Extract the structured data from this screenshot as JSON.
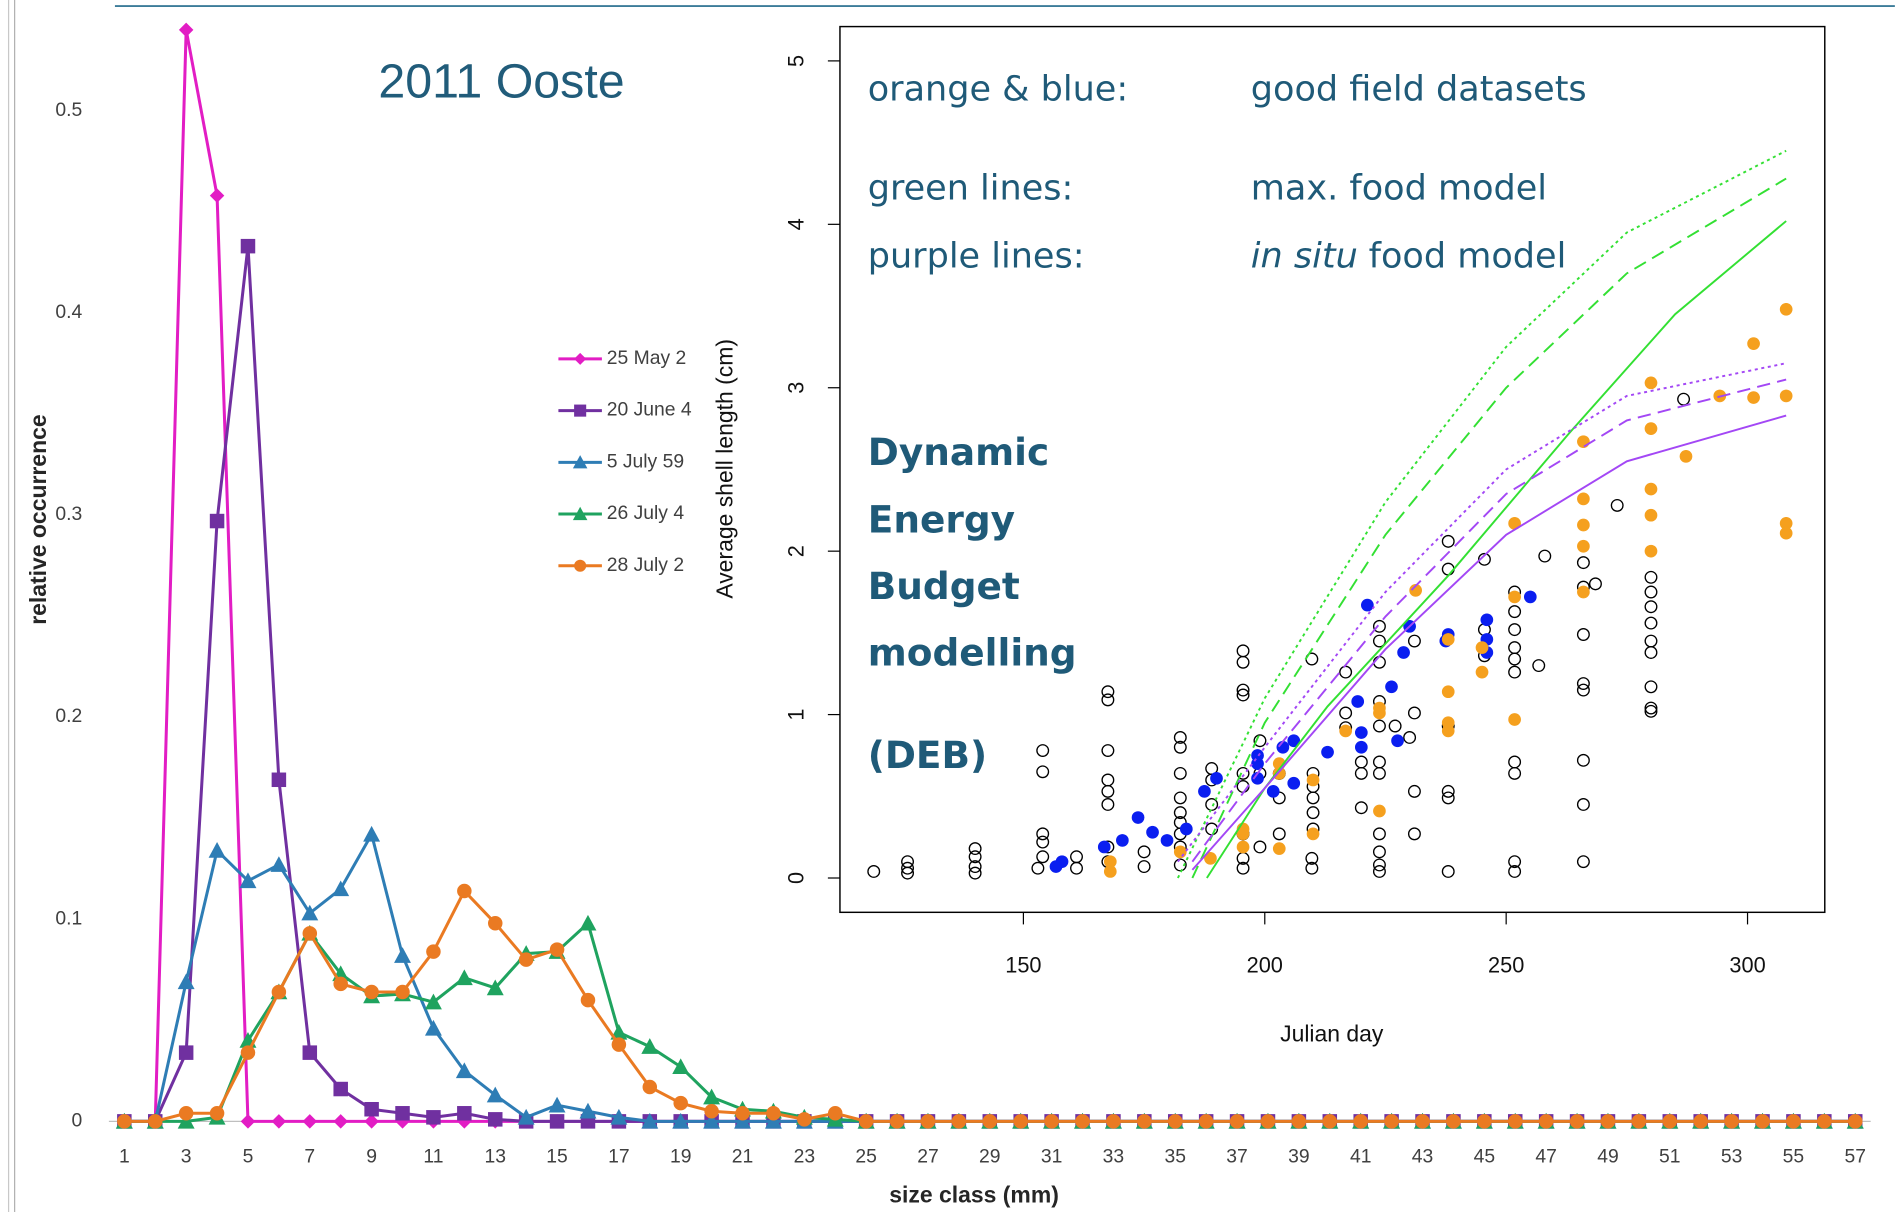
{
  "chart_data": [
    {
      "type": "line",
      "title": "2011 Ooste",
      "x_label": "size class (mm)",
      "y_label": "relative occurrence",
      "x": [
        1,
        2,
        3,
        4,
        5,
        6,
        7,
        8,
        9,
        10,
        11,
        12,
        13,
        14,
        15,
        16,
        17,
        18,
        19,
        20,
        21,
        22,
        23,
        24,
        25,
        26,
        27,
        28,
        29,
        30,
        31,
        32,
        33,
        34,
        35,
        36,
        37,
        38,
        39,
        40,
        41,
        42,
        43,
        44,
        45,
        46,
        47,
        48,
        49,
        50,
        51,
        52,
        53,
        54,
        55,
        56,
        57
      ],
      "xlim": [
        0.5,
        57.5
      ],
      "xticks": [
        1,
        3,
        5,
        7,
        9,
        11,
        13,
        15,
        17,
        19,
        21,
        23,
        25,
        27,
        29,
        31,
        33,
        35,
        37,
        39,
        41,
        43,
        45,
        47,
        49,
        51,
        53,
        55,
        57
      ],
      "ylim": [
        0,
        0.55
      ],
      "yticks": [
        0,
        0.1,
        0.2,
        0.3,
        0.4,
        0.5
      ],
      "legend": "right",
      "series": [
        {
          "name": "25 May 2",
          "color": "#e21dc4",
          "marker": "diamond",
          "values": [
            0,
            0,
            0.54,
            0.458,
            0,
            0,
            0,
            0,
            0,
            0,
            0,
            0,
            0,
            0,
            0,
            0,
            0,
            0,
            0,
            0,
            0,
            0,
            0,
            0,
            0,
            0,
            0,
            0,
            0,
            0,
            0,
            0,
            0,
            0,
            0,
            0,
            0,
            0,
            0,
            0,
            0,
            0,
            0,
            0,
            0,
            0,
            0,
            0,
            0,
            0,
            0,
            0,
            0,
            0,
            0,
            0,
            0
          ]
        },
        {
          "name": "20 June 4",
          "color": "#7030a0",
          "marker": "square",
          "values": [
            0,
            0,
            0.034,
            0.297,
            0.433,
            0.169,
            0.034,
            0.016,
            0.006,
            0.004,
            0.002,
            0.004,
            0.001,
            0,
            0,
            0,
            0,
            0,
            0,
            0,
            0,
            0,
            0,
            0,
            0,
            0,
            0,
            0,
            0,
            0,
            0,
            0,
            0,
            0,
            0,
            0,
            0,
            0,
            0,
            0,
            0,
            0,
            0,
            0,
            0,
            0,
            0,
            0,
            0,
            0,
            0,
            0,
            0,
            0,
            0,
            0,
            0
          ]
        },
        {
          "name": "5 July 59",
          "color": "#2e7db5",
          "marker": "triangle",
          "values": [
            0,
            0,
            0.069,
            0.134,
            0.119,
            0.127,
            0.103,
            0.115,
            0.142,
            0.082,
            0.046,
            0.025,
            0.013,
            0.002,
            0.008,
            0.005,
            0.002,
            0,
            0,
            0,
            0,
            0,
            0,
            0,
            0,
            0,
            0,
            0,
            0,
            0,
            0,
            0,
            0,
            0,
            0,
            0,
            0,
            0,
            0,
            0,
            0,
            0,
            0,
            0,
            0,
            0,
            0,
            0,
            0,
            0,
            0,
            0,
            0,
            0,
            0,
            0,
            0
          ]
        },
        {
          "name": "26 July 4",
          "color": "#1fa35f",
          "marker": "triangle",
          "values": [
            0,
            0,
            0,
            0.002,
            0.04,
            0.064,
            0.093,
            0.073,
            0.062,
            0.063,
            0.059,
            0.071,
            0.066,
            0.083,
            0.084,
            0.098,
            0.044,
            0.037,
            0.027,
            0.012,
            0.006,
            0.005,
            0.002,
            0.001,
            0,
            0,
            0,
            0,
            0,
            0,
            0,
            0,
            0,
            0,
            0,
            0,
            0,
            0,
            0,
            0,
            0,
            0,
            0,
            0,
            0,
            0,
            0,
            0,
            0,
            0,
            0,
            0,
            0,
            0,
            0,
            0,
            0
          ]
        },
        {
          "name": "28 July 2",
          "color": "#ea7a22",
          "marker": "circle",
          "values": [
            0,
            0,
            0.004,
            0.004,
            0.034,
            0.064,
            0.093,
            0.068,
            0.064,
            0.064,
            0.084,
            0.114,
            0.098,
            0.08,
            0.085,
            0.06,
            0.038,
            0.017,
            0.009,
            0.005,
            0.004,
            0.004,
            0.001,
            0.004,
            0,
            0,
            0,
            0,
            0,
            0,
            0,
            0,
            0,
            0,
            0,
            0,
            0,
            0,
            0,
            0,
            0,
            0,
            0,
            0,
            0,
            0,
            0,
            0,
            0,
            0,
            0,
            0,
            0,
            0,
            0,
            0,
            0
          ]
        }
      ]
    },
    {
      "type": "scatter",
      "x_label": "Julian day",
      "y_label": "Average shell length (cm)",
      "xlim": [
        112,
        316
      ],
      "ylim": [
        -0.21,
        5.21
      ],
      "xticks": [
        150,
        200,
        250,
        300
      ],
      "yticks": [
        0,
        1,
        2,
        3,
        4,
        5
      ],
      "notes": [
        {
          "label": "orange & blue:",
          "text": "good field datasets"
        },
        {
          "label": "green lines:",
          "text": "max. food model"
        },
        {
          "label": "purple lines:",
          "italic": "in situ",
          "text": "food model"
        }
      ],
      "deb_label": [
        "Dynamic",
        "Energy",
        "Budget",
        "modelling",
        "(DEB)"
      ],
      "series": [
        {
          "mode": "points",
          "color": "#000000",
          "filled": false,
          "x": [
            119,
            126,
            126,
            126,
            140,
            140,
            140,
            140,
            154,
            154,
            154,
            154,
            154,
            153,
            161,
            161,
            167.5,
            167.5,
            167.5,
            167.5,
            167.5,
            167.5,
            167.5,
            167.5,
            175,
            175,
            182.5,
            182.5,
            182.5,
            182.5,
            182.5,
            182.5,
            182.5,
            182.5,
            182.5,
            189,
            189,
            189,
            189,
            195.5,
            195.5,
            195.5,
            195.5,
            195.5,
            195.5,
            195.5,
            195.5,
            195.5,
            199,
            199,
            199,
            203,
            203,
            203,
            209.75,
            209.75,
            209.75,
            210,
            210,
            210,
            210,
            210,
            216.75,
            216.75,
            216.75,
            220,
            220,
            220,
            223.75,
            223.75,
            223.75,
            223.75,
            223.75,
            223.75,
            223.75,
            223.75,
            223.75,
            223.75,
            223.75,
            227,
            230,
            231,
            231,
            231,
            231,
            238,
            238,
            238,
            238,
            238,
            238,
            245.5,
            245.5,
            245.5,
            251.75,
            251.75,
            251.75,
            251.75,
            251.75,
            251.75,
            251.75,
            251.75,
            251.75,
            251.75,
            258,
            256.75,
            266,
            266,
            266,
            266,
            266,
            266,
            266,
            266,
            268.5,
            273,
            280,
            280,
            280,
            280,
            280,
            280,
            280,
            280,
            280,
            286.75
          ],
          "values": [
            0.04,
            0.1,
            0.06,
            0.03,
            0.18,
            0.13,
            0.07,
            0.03,
            0.78,
            0.65,
            0.27,
            0.22,
            0.13,
            0.06,
            0.13,
            0.06,
            1.14,
            1.09,
            0.78,
            0.6,
            0.53,
            0.45,
            0.19,
            0.1,
            0.16,
            0.07,
            0.86,
            0.8,
            0.64,
            0.49,
            0.4,
            0.34,
            0.27,
            0.19,
            0.08,
            0.67,
            0.6,
            0.45,
            0.3,
            1.39,
            1.32,
            1.15,
            1.12,
            0.64,
            0.56,
            0.27,
            0.12,
            0.06,
            0.84,
            0.64,
            0.19,
            0.64,
            0.49,
            0.27,
            1.34,
            0.12,
            0.06,
            0.64,
            0.56,
            0.49,
            0.4,
            0.3,
            1.26,
            1.01,
            0.92,
            0.71,
            0.64,
            0.43,
            1.54,
            1.45,
            1.32,
            1.08,
            0.93,
            0.71,
            0.64,
            0.27,
            0.16,
            0.08,
            0.04,
            0.93,
            0.86,
            1.45,
            1.01,
            0.53,
            0.27,
            2.06,
            1.89,
            0.93,
            0.53,
            0.49,
            0.04,
            1.95,
            1.52,
            1.36,
            1.75,
            1.63,
            1.52,
            1.41,
            1.34,
            1.26,
            0.71,
            0.64,
            0.1,
            0.04,
            1.97,
            1.3,
            1.93,
            1.78,
            1.49,
            1.19,
            1.15,
            0.72,
            0.45,
            0.1,
            1.8,
            2.28,
            1.84,
            1.75,
            1.66,
            1.56,
            1.45,
            1.38,
            1.17,
            1.04,
            1.02,
            2.93
          ]
        },
        {
          "mode": "points",
          "color": "#0a1ef0",
          "filled": true,
          "x": [
            158,
            156.75,
            166.75,
            170.5,
            173.75,
            176.75,
            179.75,
            183.75,
            187.5,
            190,
            198.5,
            198.5,
            198.5,
            201.75,
            203.75,
            206,
            206,
            213,
            219.25,
            220,
            220,
            221.25,
            226.25,
            227.5,
            228.75,
            230,
            237.5,
            238,
            246,
            246,
            246,
            255
          ],
          "values": [
            0.1,
            0.07,
            0.19,
            0.23,
            0.37,
            0.28,
            0.23,
            0.3,
            0.53,
            0.61,
            0.7,
            0.61,
            0.75,
            0.53,
            0.8,
            0.84,
            0.58,
            0.77,
            1.08,
            0.89,
            0.8,
            1.67,
            1.17,
            0.84,
            1.38,
            1.54,
            1.45,
            1.49,
            1.58,
            1.46,
            1.38,
            1.72
          ]
        },
        {
          "mode": "points",
          "color": "#f5a01e",
          "filled": true,
          "x": [
            168,
            168,
            182.5,
            188.75,
            195.5,
            195.5,
            195.5,
            203,
            203,
            203,
            210,
            210,
            216.75,
            223.75,
            223.75,
            223.75,
            231.25,
            238,
            238,
            238,
            238,
            245,
            245,
            251.75,
            251.75,
            251.75,
            266,
            266,
            266,
            266,
            266,
            280,
            280,
            280,
            280,
            280,
            287.25,
            294.25,
            301.25,
            301.25,
            308,
            308,
            308,
            308
          ],
          "values": [
            0.1,
            0.04,
            0.16,
            0.12,
            0.3,
            0.27,
            0.19,
            0.7,
            0.64,
            0.18,
            0.6,
            0.27,
            0.9,
            1.04,
            1.01,
            0.41,
            1.76,
            1.46,
            1.14,
            0.95,
            0.9,
            1.41,
            1.26,
            2.17,
            1.72,
            0.97,
            2.67,
            2.32,
            2.16,
            2.03,
            1.75,
            3.03,
            2.75,
            2.38,
            2.22,
            2,
            2.58,
            2.95,
            3.27,
            2.94,
            3.48,
            2.95,
            2.17,
            2.11
          ]
        },
        {
          "mode": "line",
          "color": "#33e033",
          "dash": "solid",
          "x": [
            188,
            200,
            213,
            238,
            263,
            285,
            308
          ],
          "values": [
            0,
            0.55,
            1.05,
            1.85,
            2.72,
            3.45,
            4.02
          ]
        },
        {
          "mode": "line",
          "color": "#33e033",
          "dash": "dashed",
          "x": [
            185,
            200,
            225,
            250,
            275,
            308
          ],
          "values": [
            0,
            0.95,
            2.1,
            3,
            3.7,
            4.28
          ]
        },
        {
          "mode": "line",
          "color": "#33e033",
          "dash": "dotted",
          "x": [
            182,
            200,
            225,
            250,
            275,
            308
          ],
          "values": [
            0,
            1.1,
            2.3,
            3.25,
            3.95,
            4.45
          ]
        },
        {
          "mode": "line",
          "color": "#a347f5",
          "dash": "solid",
          "x": [
            185,
            200,
            225,
            250,
            275,
            308
          ],
          "values": [
            0.05,
            0.55,
            1.4,
            2.1,
            2.55,
            2.83
          ]
        },
        {
          "mode": "line",
          "color": "#a347f5",
          "dash": "dashed",
          "x": [
            185,
            200,
            225,
            250,
            275,
            308
          ],
          "values": [
            0.1,
            0.7,
            1.6,
            2.35,
            2.8,
            3.05
          ]
        },
        {
          "mode": "line",
          "color": "#a347f5",
          "dash": "dotted",
          "x": [
            182,
            200,
            225,
            250,
            275,
            308
          ],
          "values": [
            0.1,
            0.8,
            1.75,
            2.5,
            2.95,
            3.15
          ]
        }
      ]
    }
  ]
}
